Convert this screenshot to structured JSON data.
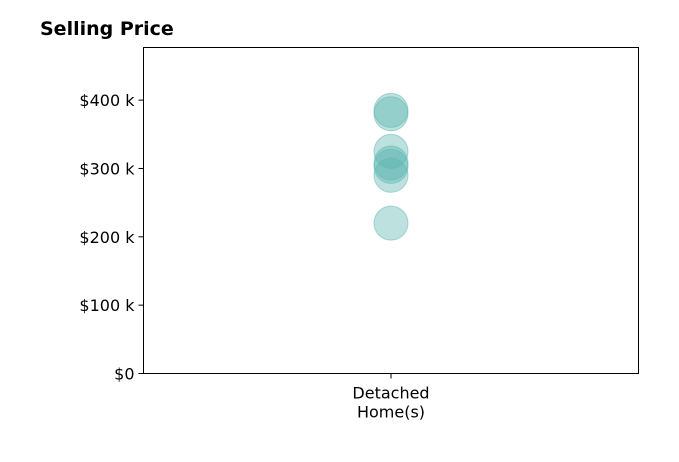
{
  "chart_data": {
    "type": "scatter",
    "title": "Selling Price",
    "xlabel": "",
    "ylabel": "",
    "categories": [
      {
        "lines": [
          "Detached",
          "Home(s)"
        ]
      }
    ],
    "yticks": [
      {
        "value": 0,
        "label": "$0"
      },
      {
        "value": 100000,
        "label": "$100 k"
      },
      {
        "value": 200000,
        "label": "$200 k"
      },
      {
        "value": 300000,
        "label": "$300 k"
      },
      {
        "value": 400000,
        "label": "$400 k"
      }
    ],
    "ylim": [
      0,
      477000
    ],
    "series": [
      {
        "category_index": 0,
        "values": [
          220000,
          290000,
          303000,
          308000,
          325000,
          380000,
          385000
        ]
      }
    ],
    "grid": false,
    "legend": "none",
    "colors": {
      "marker_fill": "#5bb5ae",
      "marker_stroke": "#5bb5ae",
      "axis": "#000000"
    }
  }
}
